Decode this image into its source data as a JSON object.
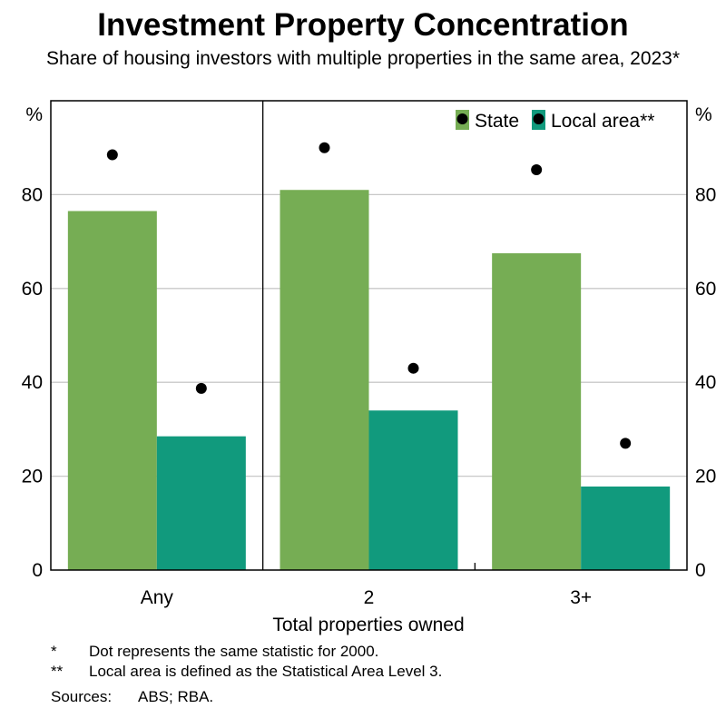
{
  "title": "Investment Property Concentration",
  "subtitle": "Share of housing investors with multiple properties in the same area, 2023*",
  "chart_data": {
    "type": "bar",
    "categories": [
      "Any",
      "2",
      "3+"
    ],
    "series": [
      {
        "name": "State",
        "values": [
          76.5,
          81,
          67.5
        ],
        "color": "#76ad54"
      },
      {
        "name": "Local area**",
        "values": [
          28.5,
          34,
          17.8
        ],
        "color": "#119a7d"
      }
    ],
    "dots_2000": [
      {
        "series": "State",
        "values": [
          88.5,
          90,
          85.3
        ]
      },
      {
        "series": "Local area**",
        "values": [
          38.7,
          43,
          27
        ]
      }
    ],
    "dot_color": "#000000",
    "xlabel": "Total properties owned",
    "ylabel_left": "%",
    "ylabel_right": "%",
    "ylim": [
      0,
      100
    ],
    "yticks": [
      0,
      20,
      40,
      60,
      80
    ],
    "grid": true,
    "legend_position": "top-right"
  },
  "notes": [
    {
      "mark": "*",
      "text": "Dot represents the same statistic for 2000."
    },
    {
      "mark": "**",
      "text": "Local area is defined as the Statistical Area Level 3."
    }
  ],
  "sources": {
    "label": "Sources:",
    "text": "ABS; RBA."
  }
}
